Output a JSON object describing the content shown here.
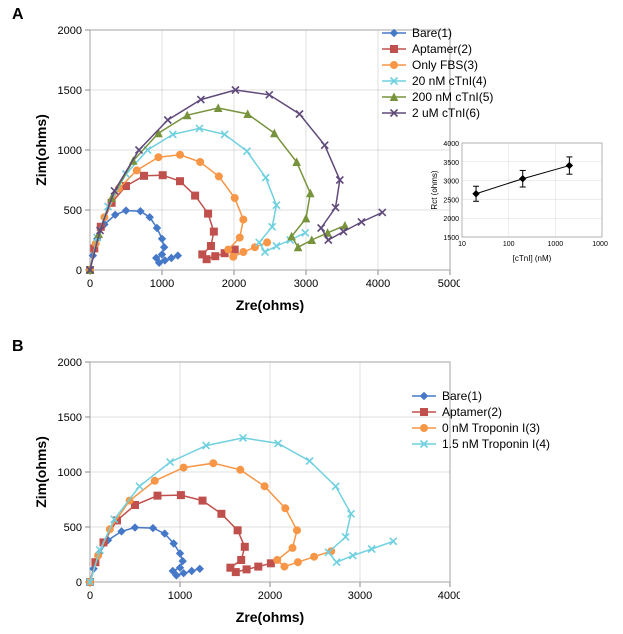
{
  "panelA": {
    "label": "A",
    "chart": {
      "type": "scatter-line-nyquist",
      "xlabel": "Zre(ohms)",
      "ylabel": "Zim(ohms)",
      "label_fontsize": 14,
      "tick_fontsize": 11,
      "background_color": "#ffffff",
      "axis_color": "#888888",
      "grid_color": "#bfbfbf",
      "xlim": [
        0,
        5000
      ],
      "ylim": [
        0,
        2000
      ],
      "xtick_step": 1000,
      "ytick_step": 500,
      "series": [
        {
          "name": "Bare(1)",
          "color": "#4678c8",
          "marker": "diamond",
          "line_width": 1.5,
          "x": [
            0,
            40,
            100,
            200,
            350,
            500,
            700,
            830,
            930,
            1000,
            1030,
            1000,
            920,
            960,
            1040,
            1130,
            1220
          ],
          "y": [
            0,
            120,
            260,
            380,
            460,
            495,
            490,
            440,
            350,
            260,
            190,
            130,
            100,
            60,
            80,
            100,
            120
          ]
        },
        {
          "name": "Aptamer(2)",
          "color": "#c0504d",
          "marker": "square",
          "line_width": 1.5,
          "x": [
            0,
            60,
            150,
            300,
            500,
            750,
            1010,
            1250,
            1460,
            1640,
            1720,
            1680,
            1560,
            1620,
            1740,
            1870,
            2010
          ],
          "y": [
            0,
            180,
            360,
            560,
            700,
            785,
            790,
            740,
            620,
            470,
            320,
            200,
            130,
            90,
            115,
            140,
            170
          ]
        },
        {
          "name": "Only FBS(3)",
          "color": "#f79646",
          "marker": "circle",
          "line_width": 1.5,
          "x": [
            0,
            80,
            200,
            400,
            650,
            950,
            1250,
            1530,
            1790,
            2010,
            2130,
            2080,
            1920,
            1990,
            2130,
            2290,
            2460
          ],
          "y": [
            0,
            220,
            440,
            680,
            830,
            940,
            960,
            900,
            780,
            600,
            420,
            270,
            170,
            110,
            150,
            190,
            230
          ]
        },
        {
          "name": "20 nM cTnI(4)",
          "color": "#6fd0df",
          "marker": "x",
          "line_width": 1.5,
          "x": [
            0,
            100,
            250,
            500,
            800,
            1150,
            1520,
            1870,
            2180,
            2440,
            2590,
            2530,
            2350,
            2430,
            2590,
            2780,
            2990
          ],
          "y": [
            0,
            270,
            530,
            800,
            1000,
            1130,
            1180,
            1130,
            990,
            770,
            540,
            360,
            230,
            150,
            200,
            250,
            310
          ]
        },
        {
          "name": "200 nM cTnI(5)",
          "color": "#77933c",
          "marker": "triangle",
          "line_width": 1.5,
          "x": [
            0,
            120,
            300,
            600,
            950,
            1350,
            1780,
            2190,
            2560,
            2870,
            3060,
            3000,
            2800,
            2890,
            3080,
            3300,
            3540
          ],
          "y": [
            0,
            300,
            600,
            910,
            1140,
            1290,
            1350,
            1300,
            1140,
            900,
            640,
            430,
            280,
            190,
            250,
            310,
            370
          ]
        },
        {
          "name": "2 uM cTnI(6)",
          "color": "#604a7b",
          "marker": "x",
          "line_width": 1.5,
          "x": [
            0,
            140,
            340,
            680,
            1080,
            1540,
            2020,
            2490,
            2910,
            3260,
            3470,
            3410,
            3210,
            3310,
            3520,
            3770,
            4060
          ],
          "y": [
            0,
            330,
            660,
            1000,
            1250,
            1420,
            1500,
            1460,
            1300,
            1040,
            750,
            520,
            350,
            250,
            320,
            400,
            480
          ]
        }
      ]
    },
    "inset": {
      "type": "line-log-x",
      "xlabel": "[cTnI] (nM)",
      "ylabel": "Rct (ohms)",
      "background_color": "#ffffff",
      "axis_color": "#888888",
      "grid_color": "#d0d0d0",
      "xlim_log": [
        10,
        10000
      ],
      "ylim": [
        1500,
        4000
      ],
      "ytick_step": 500,
      "xticks_log": [
        10,
        100,
        1000,
        10000
      ],
      "color": "#000000",
      "line_width": 1,
      "points": [
        {
          "x": 20,
          "y": 2650,
          "err": 200
        },
        {
          "x": 200,
          "y": 3050,
          "err": 220
        },
        {
          "x": 2000,
          "y": 3400,
          "err": 230
        }
      ]
    }
  },
  "panelB": {
    "label": "B",
    "chart": {
      "type": "scatter-line-nyquist",
      "xlabel": "Zre(ohms)",
      "ylabel": "Zim(ohms)",
      "label_fontsize": 14,
      "tick_fontsize": 11,
      "background_color": "#ffffff",
      "axis_color": "#888888",
      "grid_color": "#bfbfbf",
      "xlim": [
        0,
        4000
      ],
      "ylim": [
        0,
        2000
      ],
      "xtick_step": 1000,
      "ytick_step": 500,
      "series": [
        {
          "name": "Bare(1)",
          "color": "#4678c8",
          "marker": "diamond",
          "line_width": 1.5,
          "x": [
            0,
            40,
            100,
            200,
            350,
            500,
            700,
            830,
            930,
            1000,
            1030,
            1000,
            920,
            960,
            1040,
            1130,
            1220
          ],
          "y": [
            0,
            120,
            260,
            380,
            460,
            495,
            490,
            440,
            350,
            260,
            190,
            130,
            100,
            60,
            80,
            100,
            120
          ]
        },
        {
          "name": "Aptamer(2)",
          "color": "#c0504d",
          "marker": "square",
          "line_width": 1.5,
          "x": [
            0,
            60,
            150,
            300,
            500,
            750,
            1010,
            1250,
            1460,
            1640,
            1720,
            1680,
            1560,
            1620,
            1740,
            1870,
            2010
          ],
          "y": [
            0,
            180,
            360,
            560,
            700,
            785,
            790,
            740,
            620,
            470,
            320,
            200,
            130,
            90,
            115,
            140,
            170
          ]
        },
        {
          "name": "0 nM Troponin I(3)",
          "color": "#f79646",
          "marker": "circle",
          "line_width": 1.5,
          "x": [
            0,
            90,
            220,
            440,
            720,
            1040,
            1370,
            1670,
            1940,
            2170,
            2300,
            2250,
            2080,
            2160,
            2310,
            2490,
            2680
          ],
          "y": [
            0,
            240,
            480,
            740,
            920,
            1040,
            1080,
            1020,
            870,
            670,
            470,
            310,
            200,
            140,
            180,
            230,
            280
          ]
        },
        {
          "name": "1.5 nM Troponin I(4)",
          "color": "#6fd0df",
          "marker": "x",
          "line_width": 1.5,
          "x": [
            0,
            110,
            270,
            550,
            890,
            1290,
            1700,
            2090,
            2440,
            2730,
            2900,
            2840,
            2650,
            2740,
            2920,
            3130,
            3370
          ],
          "y": [
            0,
            290,
            570,
            870,
            1090,
            1240,
            1310,
            1260,
            1100,
            870,
            620,
            410,
            270,
            180,
            240,
            300,
            370
          ]
        }
      ]
    }
  }
}
